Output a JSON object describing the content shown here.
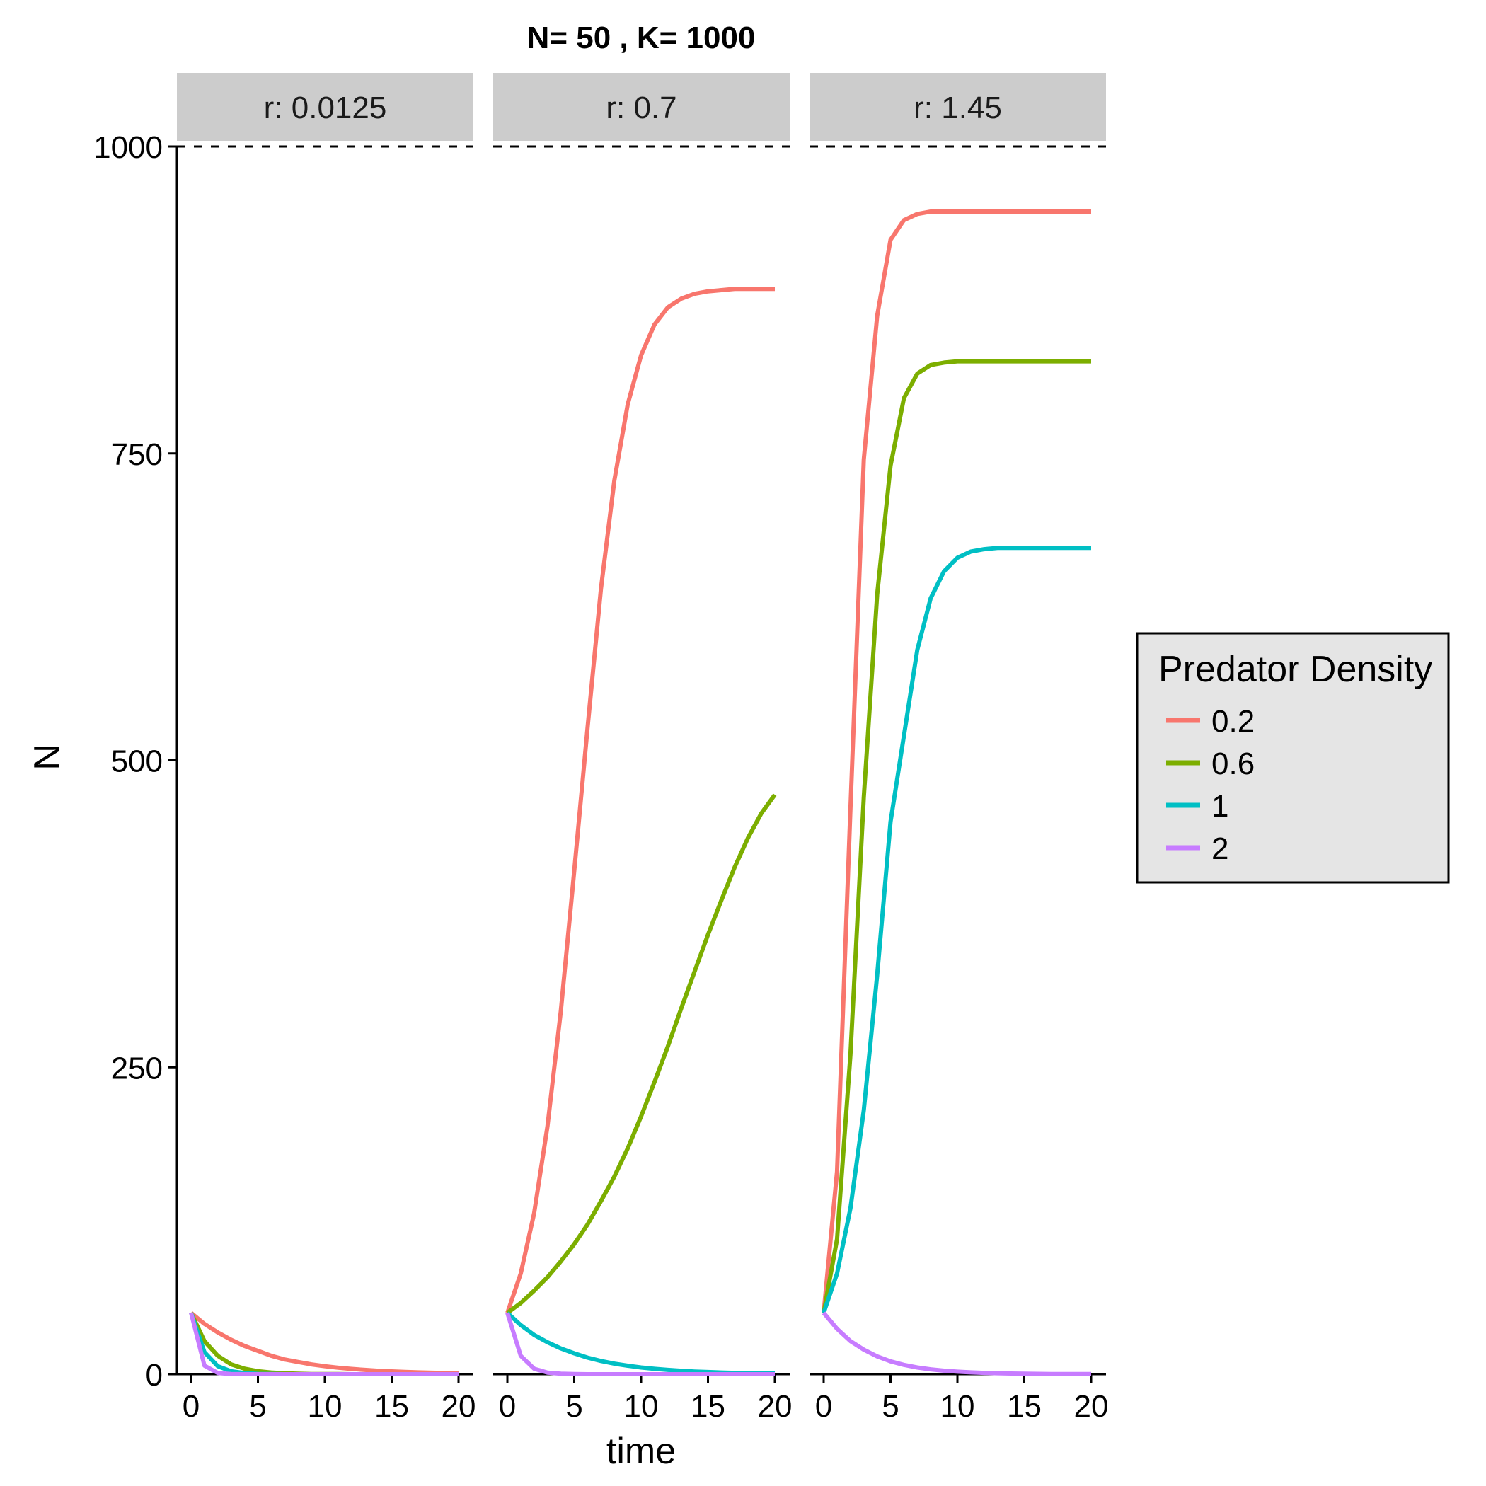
{
  "chart_data": {
    "type": "line",
    "title": "N= 50 , K= 1000",
    "xlabel": "time",
    "ylabel": "N",
    "xlim": [
      -1,
      21
    ],
    "ylim": [
      0,
      1000
    ],
    "x_ticks": [
      0,
      5,
      10,
      15,
      20
    ],
    "y_ticks": [
      0,
      250,
      500,
      750,
      1000
    ],
    "reference_line": {
      "y": 1000,
      "style": "dashed"
    },
    "legend": {
      "title": "Predator Density",
      "placement": "right",
      "entries": [
        {
          "label": "0.2",
          "color": "#F8766D"
        },
        {
          "label": "0.6",
          "color": "#7CAE00"
        },
        {
          "label": "1",
          "color": "#00BFC4"
        },
        {
          "label": "2",
          "color": "#C77CFF"
        }
      ]
    },
    "x": [
      0,
      1,
      2,
      3,
      4,
      5,
      6,
      7,
      8,
      9,
      10,
      11,
      12,
      13,
      14,
      15,
      16,
      17,
      18,
      19,
      20
    ],
    "panels": [
      {
        "strip": "r: 0.0125",
        "series": [
          {
            "name": "0.2",
            "values": [
              50,
              41,
              34,
              28,
              23,
              19,
              15,
              12,
              10,
              8,
              6.5,
              5.3,
              4.3,
              3.5,
              2.8,
              2.3,
              1.9,
              1.5,
              1.2,
              1,
              0.8
            ]
          },
          {
            "name": "0.6",
            "values": [
              50,
              27,
              15,
              8,
              4.5,
              2.5,
              1.4,
              0.8,
              0.4,
              0.2,
              0.1,
              0.1,
              0,
              0,
              0,
              0,
              0,
              0,
              0,
              0,
              0
            ]
          },
          {
            "name": "1",
            "values": [
              50,
              18,
              6.5,
              2.4,
              0.9,
              0.3,
              0.1,
              0,
              0,
              0,
              0,
              0,
              0,
              0,
              0,
              0,
              0,
              0,
              0,
              0,
              0
            ]
          },
          {
            "name": "2",
            "values": [
              50,
              7,
              1,
              0.1,
              0,
              0,
              0,
              0,
              0,
              0,
              0,
              0,
              0,
              0,
              0,
              0,
              0,
              0,
              0,
              0,
              0
            ]
          }
        ]
      },
      {
        "strip": "r: 0.7",
        "series": [
          {
            "name": "0.2",
            "values": [
              50,
              82,
              131,
              202,
              296,
              410,
              527,
              640,
              728,
              790,
              830,
              855,
              869,
              876,
              880,
              882,
              883,
              884,
              884,
              884,
              884
            ]
          },
          {
            "name": "0.6",
            "values": [
              50,
              58,
              68,
              79,
              92,
              106,
              122,
              141,
              161,
              184,
              210,
              238,
              267,
              298,
              328,
              358,
              386,
              413,
              437,
              457,
              472
            ]
          },
          {
            "name": "1",
            "values": [
              50,
              40,
              32,
              26,
              21,
              17,
              13.5,
              10.8,
              8.6,
              6.9,
              5.5,
              4.4,
              3.5,
              2.8,
              2.2,
              1.8,
              1.4,
              1.1,
              0.9,
              0.7,
              0.6
            ]
          },
          {
            "name": "2",
            "values": [
              50,
              15,
              4.5,
              1.3,
              0.4,
              0.1,
              0,
              0,
              0,
              0,
              0,
              0,
              0,
              0,
              0,
              0,
              0,
              0,
              0,
              0,
              0
            ]
          }
        ]
      },
      {
        "strip": "r: 1.45",
        "series": [
          {
            "name": "0.2",
            "values": [
              50,
              165,
              460,
              745,
              862,
              924,
              940,
              945,
              947,
              947,
              947,
              947,
              947,
              947,
              947,
              947,
              947,
              947,
              947,
              947,
              947
            ]
          },
          {
            "name": "0.6",
            "values": [
              50,
              110,
              260,
              470,
              635,
              740,
              795,
              815,
              822,
              824,
              825,
              825,
              825,
              825,
              825,
              825,
              825,
              825,
              825,
              825,
              825
            ]
          },
          {
            "name": "1",
            "values": [
              50,
              82,
              135,
              215,
              325,
              450,
              520,
              590,
              632,
              654,
              665,
              670,
              672,
              673,
              673,
              673,
              673,
              673,
              673,
              673,
              673
            ]
          },
          {
            "name": "2",
            "values": [
              50,
              37,
              27,
              20,
              14.5,
              10.5,
              7.6,
              5.5,
              4,
              2.9,
              2.1,
              1.5,
              1.1,
              0.8,
              0.6,
              0.4,
              0.3,
              0.2,
              0.2,
              0.1,
              0.1
            ]
          }
        ]
      }
    ]
  }
}
